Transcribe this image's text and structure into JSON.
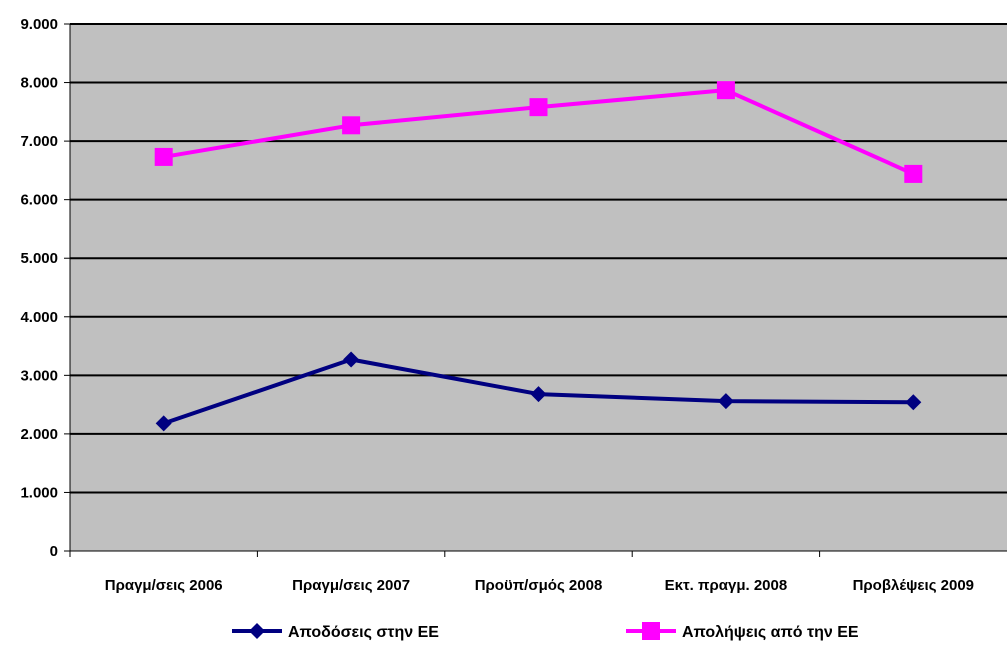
{
  "chart_data": {
    "type": "line",
    "categories": [
      "Πραγμ/σεις 2006",
      "Πραγμ/σεις 2007",
      "Προϋπ/σμός 2008",
      "Εκτ. πραγμ. 2008",
      "Προβλέψεις 2009"
    ],
    "series": [
      {
        "name": "Αποδόσεις στην ΕΕ",
        "values": [
          2180,
          3270,
          2680,
          2560,
          2540
        ],
        "color": "#000080",
        "marker": "diamond"
      },
      {
        "name": "Απολήψεις από την ΕΕ",
        "values": [
          6730,
          7270,
          7580,
          7870,
          6440
        ],
        "color": "#FF00FF",
        "marker": "square"
      }
    ],
    "ylim": [
      0,
      9000
    ],
    "yticks": [
      0,
      1000,
      2000,
      3000,
      4000,
      5000,
      6000,
      7000,
      8000,
      9000
    ],
    "ytick_labels": [
      "0",
      "1.000",
      "2.000",
      "3.000",
      "4.000",
      "5.000",
      "6.000",
      "7.000",
      "8.000",
      "9.000"
    ],
    "grid": true,
    "plot_background": "#C0C0C0",
    "legend_position": "bottom",
    "title": "",
    "xlabel": "",
    "ylabel": ""
  }
}
